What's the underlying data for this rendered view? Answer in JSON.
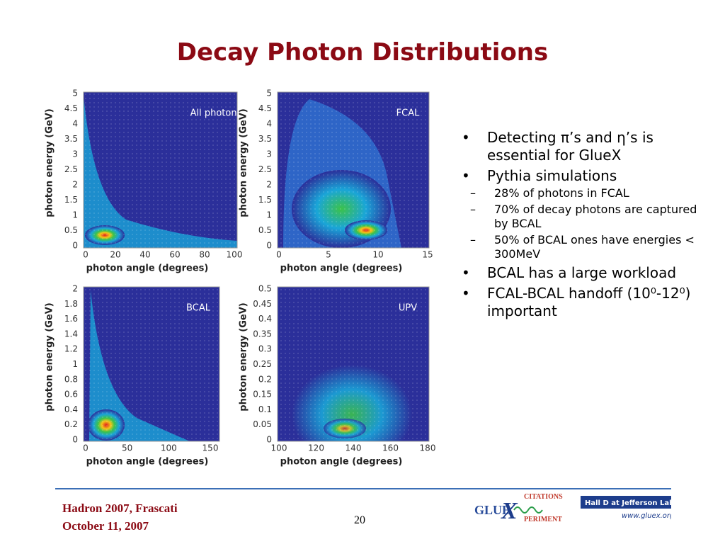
{
  "title": "Decay Photon Distributions",
  "panels": [
    {
      "label": "All photons",
      "xlabel": "photon angle (degrees)",
      "ylabel": "photon energy (GeV)",
      "xticks": [
        "0",
        "20",
        "40",
        "60",
        "80",
        "100"
      ],
      "yticks": [
        "0",
        "0.5",
        "1",
        "1.5",
        "2",
        "2.5",
        "3",
        "3.5",
        "4",
        "4.5",
        "5"
      ]
    },
    {
      "label": "FCAL",
      "xlabel": "photon angle (degrees)",
      "ylabel": "photon energy (GeV)",
      "xticks": [
        "0",
        "5",
        "10",
        "15"
      ],
      "yticks": [
        "0",
        "0.5",
        "1",
        "1.5",
        "2",
        "2.5",
        "3",
        "3.5",
        "4",
        "4.5",
        "5"
      ]
    },
    {
      "label": "BCAL",
      "xlabel": "photon angle (degrees)",
      "ylabel": "photon energy (GeV)",
      "xticks": [
        "0",
        "50",
        "100",
        "150"
      ],
      "yticks": [
        "0",
        "0.2",
        "0.4",
        "0.6",
        "0.8",
        "1",
        "1.2",
        "1.4",
        "1.6",
        "1.8",
        "2"
      ]
    },
    {
      "label": "UPV",
      "xlabel": "photon angle (degrees)",
      "ylabel": "photon energy (GeV)",
      "xticks": [
        "100",
        "120",
        "140",
        "160",
        "180"
      ],
      "yticks": [
        "0",
        "0.05",
        "0.1",
        "0.15",
        "0.2",
        "0.25",
        "0.3",
        "0.35",
        "0.4",
        "0.45",
        "0.5"
      ]
    }
  ],
  "bullets": [
    {
      "text": "Detecting π’s and η’s is essential for GlueX",
      "subitems": []
    },
    {
      "text": "Pythia simulations",
      "subitems": [
        "28% of photons in FCAL",
        "70% of decay photons are captured by BCAL",
        "50% of BCAL ones have energies < 300MeV"
      ]
    },
    {
      "text": "BCAL has a large workload",
      "subitems": []
    },
    {
      "text": "FCAL-BCAL handoff (10⁰-12⁰) important",
      "subitems": []
    }
  ],
  "footer": {
    "event": "Hadron 2007, Frascati",
    "date": "October 11, 2007",
    "page": "20",
    "logo_glue": "GLUE",
    "logo_x": "X",
    "logo_top": "CITATIONS",
    "logo_bottom": "PERIMENT",
    "lab": "Hall D at Jefferson Lab",
    "url": "www.gluex.org"
  }
}
